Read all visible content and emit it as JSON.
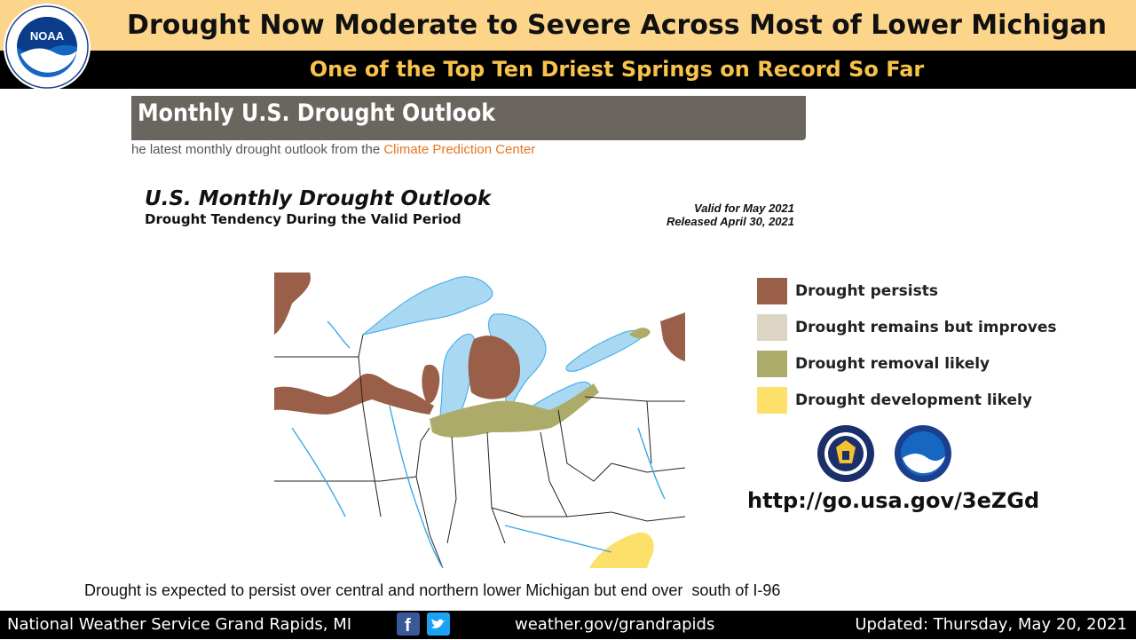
{
  "header": {
    "title": "Drought Now Moderate to Severe Across Most of Lower Michigan",
    "subtitle": "One of the Top Ten Driest Springs on Record So Far",
    "logo_text": "NOAA"
  },
  "outlook": {
    "banner": "Monthly U.S. Drought Outlook",
    "latest_prefix": "he latest monthly drought outlook from the ",
    "latest_link": "Climate Prediction Center",
    "map_title": "U.S. Monthly Drought Outlook",
    "map_subtitle": "Drought Tendency During the Valid Period",
    "valid": "Valid for May 2021",
    "released": "Released April 30, 2021"
  },
  "legend": [
    {
      "label": "Drought persists",
      "color": "#9a5f49"
    },
    {
      "label": "Drought remains but improves",
      "color": "#ddd5c4"
    },
    {
      "label": "Drought removal likely",
      "color": "#adab6a"
    },
    {
      "label": "Drought development likely",
      "color": "#fce06a"
    }
  ],
  "url": "http://go.usa.gov/3eZGd",
  "caption": "Drought is expected to persist over central and northern lower Michigan but end over  south of I-96",
  "footer": {
    "office": "National Weather Service Grand Rapids, MI",
    "site": "weather.gov/grandrapids",
    "updated": "Updated: Thursday, May 20, 2021"
  },
  "colors": {
    "title_bg": "#fcd58a",
    "subtitle_text": "#f8c34a",
    "lake": "#a9d8f2",
    "river": "#3aa8e8",
    "link": "#e8741c"
  },
  "icons": [
    "noaa-logo-icon",
    "doc-seal-icon",
    "noaa-small-icon",
    "facebook-icon",
    "twitter-icon"
  ]
}
